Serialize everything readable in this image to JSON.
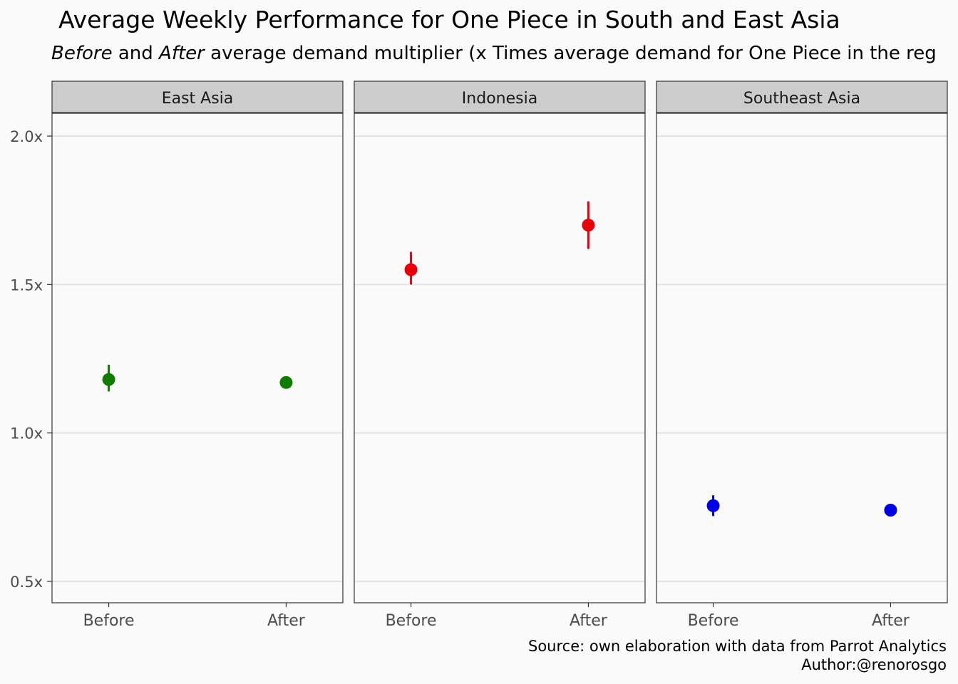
{
  "title": "Average Weekly Performance for One Piece in South and East Asia",
  "subtitle": {
    "before_word": "Before",
    "and_word": " and ",
    "after_word": "After",
    "rest": " average demand multiplier (x Times average demand for One Piece in the reg"
  },
  "caption": {
    "line1": "Source: own elaboration with data from Parrot Analytics",
    "line2": "Author:@renorosgo"
  },
  "colors": {
    "east_asia": "#117a00",
    "indonesia": "#e8000b",
    "southeast_asia": "#0000e8",
    "strip_fill": "#cccccc",
    "grid": "#e3e3e3"
  },
  "chart_data": {
    "type": "scatter",
    "categories": [
      "Before",
      "After"
    ],
    "ylim": [
      0.43,
      2.08
    ],
    "yticks": [
      0.5,
      1.0,
      1.5,
      2.0
    ],
    "ytick_labels": [
      "0.5x",
      "1.0x",
      "1.5x",
      "2.0x"
    ],
    "grid": true,
    "facets": [
      {
        "name": "East Asia",
        "color": "#117a00",
        "points": [
          {
            "x": "Before",
            "y": 1.18,
            "ymin": 1.14,
            "ymax": 1.23
          },
          {
            "x": "After",
            "y": 1.17,
            "ymin": 1.15,
            "ymax": 1.19
          }
        ]
      },
      {
        "name": "Indonesia",
        "color": "#e8000b",
        "points": [
          {
            "x": "Before",
            "y": 1.55,
            "ymin": 1.5,
            "ymax": 1.61
          },
          {
            "x": "After",
            "y": 1.7,
            "ymin": 1.62,
            "ymax": 1.78
          }
        ]
      },
      {
        "name": "Southeast Asia",
        "color": "#0000e8",
        "points": [
          {
            "x": "Before",
            "y": 0.755,
            "ymin": 0.72,
            "ymax": 0.79
          },
          {
            "x": "After",
            "y": 0.74,
            "ymin": 0.735,
            "ymax": 0.75
          }
        ]
      }
    ]
  }
}
